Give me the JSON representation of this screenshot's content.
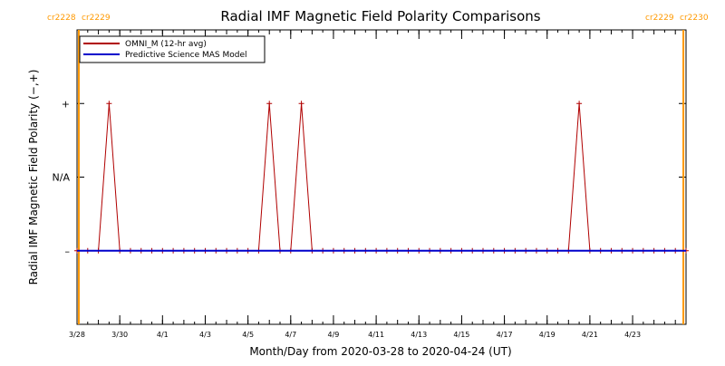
{
  "chart_data": {
    "type": "line",
    "title": "Radial IMF Magnetic Field Polarity Comparisons",
    "xlabel": "Month/Day from 2020-03-28 to 2020-04-24 (UT)",
    "ylabel": "Radial IMF Magnetic Field Polarity (−,+)",
    "x_start": "2020-03-28",
    "x_end": "2020-04-25T12:00",
    "ylim": [
      -2.0,
      2.0
    ],
    "y_ticks": [
      {
        "value": 1,
        "label": "+"
      },
      {
        "value": 0,
        "label": "N/A"
      },
      {
        "value": -1,
        "label": "–"
      }
    ],
    "x_ticks": [
      {
        "date": "2020-03-28",
        "label": "3/28"
      },
      {
        "date": "2020-03-30",
        "label": "3/30"
      },
      {
        "date": "2020-04-01",
        "label": "4/1"
      },
      {
        "date": "2020-04-03",
        "label": "4/3"
      },
      {
        "date": "2020-04-05",
        "label": "4/5"
      },
      {
        "date": "2020-04-07",
        "label": "4/7"
      },
      {
        "date": "2020-04-09",
        "label": "4/9"
      },
      {
        "date": "2020-04-11",
        "label": "4/11"
      },
      {
        "date": "2020-04-13",
        "label": "4/13"
      },
      {
        "date": "2020-04-15",
        "label": "4/15"
      },
      {
        "date": "2020-04-17",
        "label": "4/17"
      },
      {
        "date": "2020-04-19",
        "label": "4/19"
      },
      {
        "date": "2020-04-21",
        "label": "4/21"
      },
      {
        "date": "2020-04-23",
        "label": "4/23"
      }
    ],
    "carrington_markers": [
      {
        "date": "2020-03-28T02:00",
        "label_left": "cr2228",
        "label_right": "cr2229",
        "side": "left"
      },
      {
        "date": "2020-04-25T09:00",
        "label_left": "cr2229",
        "label_right": "cr2230",
        "side": "right"
      }
    ],
    "legend": {
      "placement": "top-left",
      "entries": [
        {
          "label": "OMNI_M (12-hr avg)",
          "color": "#b00000"
        },
        {
          "label": "Predictive Science MAS Model",
          "color": "#0000cc"
        }
      ]
    },
    "series": [
      {
        "name": "OMNI_M (12-hr avg)",
        "color": "#b00000",
        "marker": "+",
        "x": [
          "2020-03-28T00:00",
          "2020-03-28T12:00",
          "2020-03-29T00:00",
          "2020-03-29T12:00",
          "2020-03-30T00:00",
          "2020-03-30T12:00",
          "2020-03-31T00:00",
          "2020-03-31T12:00",
          "2020-04-01T00:00",
          "2020-04-01T12:00",
          "2020-04-02T00:00",
          "2020-04-02T12:00",
          "2020-04-03T00:00",
          "2020-04-03T12:00",
          "2020-04-04T00:00",
          "2020-04-04T12:00",
          "2020-04-05T00:00",
          "2020-04-05T12:00",
          "2020-04-06T00:00",
          "2020-04-06T12:00",
          "2020-04-07T00:00",
          "2020-04-07T12:00",
          "2020-04-08T00:00",
          "2020-04-08T12:00",
          "2020-04-09T00:00",
          "2020-04-09T12:00",
          "2020-04-10T00:00",
          "2020-04-10T12:00",
          "2020-04-11T00:00",
          "2020-04-11T12:00",
          "2020-04-12T00:00",
          "2020-04-12T12:00",
          "2020-04-13T00:00",
          "2020-04-13T12:00",
          "2020-04-14T00:00",
          "2020-04-14T12:00",
          "2020-04-15T00:00",
          "2020-04-15T12:00",
          "2020-04-16T00:00",
          "2020-04-16T12:00",
          "2020-04-17T00:00",
          "2020-04-17T12:00",
          "2020-04-18T00:00",
          "2020-04-18T12:00",
          "2020-04-19T00:00",
          "2020-04-19T12:00",
          "2020-04-20T00:00",
          "2020-04-20T12:00",
          "2020-04-21T00:00",
          "2020-04-21T12:00",
          "2020-04-22T00:00",
          "2020-04-22T12:00",
          "2020-04-23T00:00",
          "2020-04-23T12:00",
          "2020-04-24T00:00",
          "2020-04-24T12:00",
          "2020-04-25T00:00",
          "2020-04-25T12:00"
        ],
        "y": [
          -1,
          -1,
          -1,
          1,
          -1,
          -1,
          -1,
          -1,
          -1,
          -1,
          -1,
          -1,
          -1,
          -1,
          -1,
          -1,
          -1,
          -1,
          1,
          -1,
          -1,
          1,
          -1,
          -1,
          -1,
          -1,
          -1,
          -1,
          -1,
          -1,
          -1,
          -1,
          -1,
          -1,
          -1,
          -1,
          -1,
          -1,
          -1,
          -1,
          -1,
          -1,
          -1,
          -1,
          -1,
          -1,
          -1,
          1,
          -1,
          -1,
          -1,
          -1,
          -1,
          -1,
          -1,
          -1,
          -1,
          -1
        ]
      },
      {
        "name": "Predictive Science MAS Model",
        "color": "#0000cc",
        "marker": "",
        "x": [
          "2020-03-28T00:00",
          "2020-04-25T12:00"
        ],
        "y": [
          -1,
          -1
        ]
      }
    ],
    "marker_color": "#ff9900",
    "axis_color": "#000000"
  }
}
